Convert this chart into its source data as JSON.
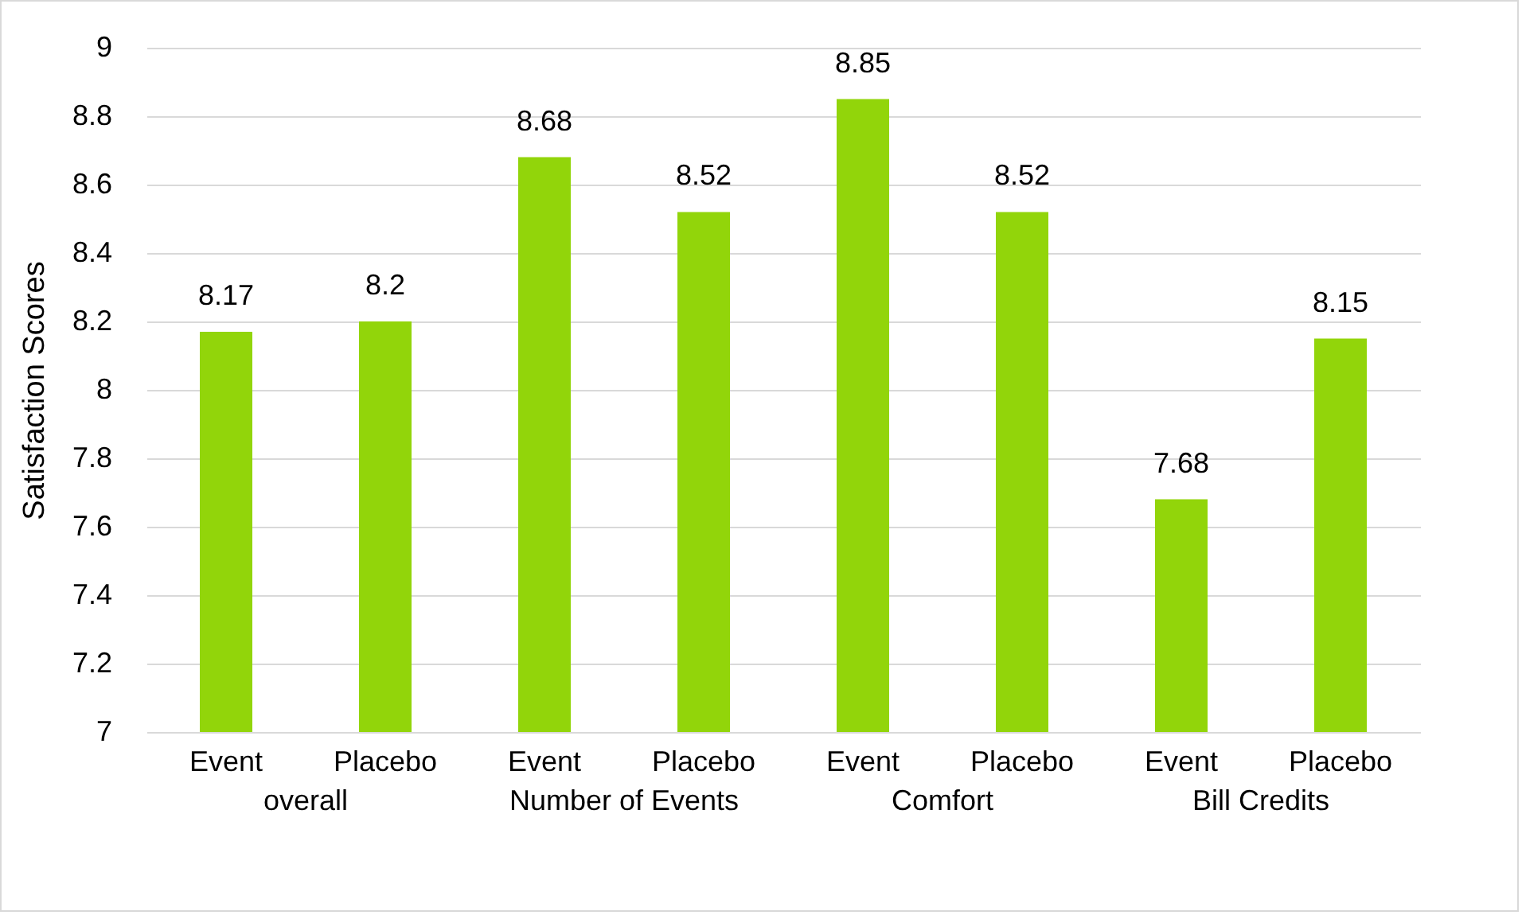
{
  "chart_data": {
    "type": "bar",
    "ylabel": "Satisfaction Scores",
    "categories": [
      "Event",
      "Placebo",
      "Event",
      "Placebo",
      "Event",
      "Placebo",
      "Event",
      "Placebo"
    ],
    "values": [
      8.17,
      8.2,
      8.68,
      8.52,
      8.85,
      8.52,
      7.68,
      8.15
    ],
    "color": "#92d50a",
    "ylim": [
      7,
      9
    ],
    "yticks": [
      7,
      7.2,
      7.4,
      7.6,
      7.8,
      8,
      8.2,
      8.4,
      8.6,
      8.8,
      9
    ],
    "grid": true,
    "data_labels": true,
    "annotations": [
      "overall",
      "Number of Events",
      "Comfort",
      "Bill Credits"
    ]
  }
}
